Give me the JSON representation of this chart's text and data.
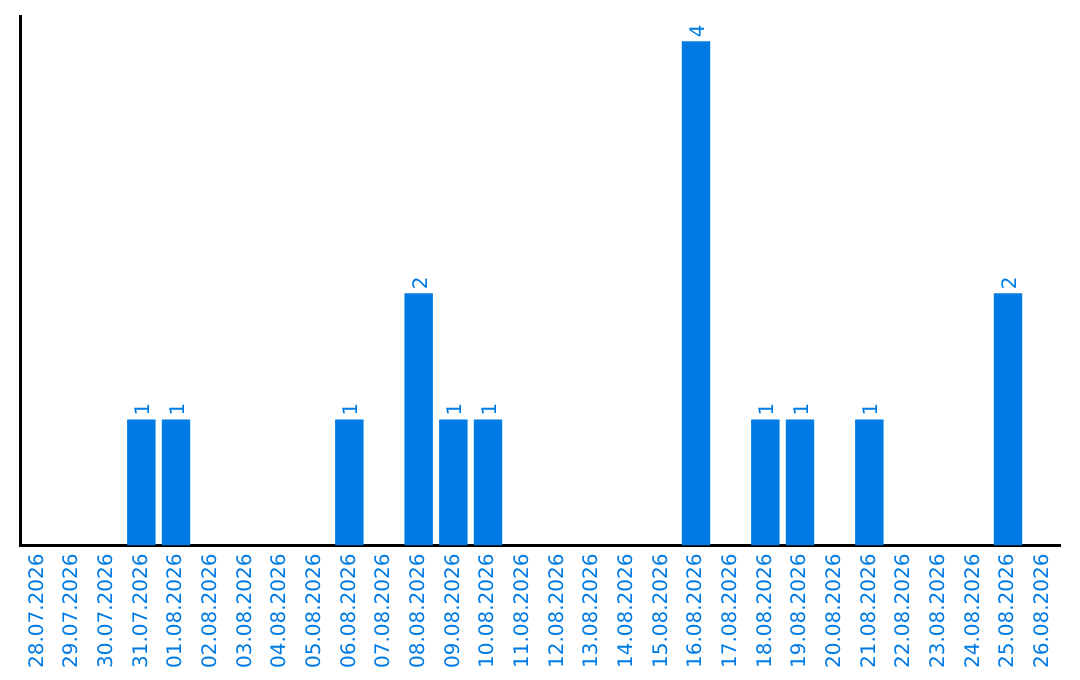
{
  "chart_data": {
    "type": "bar",
    "categories": [
      "28.07.2026",
      "29.07.2026",
      "30.07.2026",
      "31.07.2026",
      "01.08.2026",
      "02.08.2026",
      "03.08.2026",
      "04.08.2026",
      "05.08.2026",
      "06.08.2026",
      "07.08.2026",
      "08.08.2026",
      "09.08.2026",
      "10.08.2026",
      "11.08.2026",
      "12.08.2026",
      "13.08.2026",
      "14.08.2026",
      "15.08.2026",
      "16.08.2026",
      "17.08.2026",
      "18.08.2026",
      "19.08.2026",
      "20.08.2026",
      "21.08.2026",
      "22.08.2026",
      "23.08.2026",
      "24.08.2026",
      "25.08.2026",
      "26.08.2026"
    ],
    "values": [
      0,
      0,
      0,
      1,
      1,
      0,
      0,
      0,
      0,
      1,
      0,
      2,
      1,
      1,
      0,
      0,
      0,
      0,
      0,
      4,
      0,
      1,
      1,
      0,
      1,
      0,
      0,
      0,
      2,
      0
    ],
    "value_labels": [
      null,
      null,
      null,
      "1",
      "1",
      null,
      null,
      null,
      null,
      "1",
      null,
      "2",
      "1",
      "1",
      null,
      null,
      null,
      null,
      null,
      "4",
      null,
      "1",
      "1",
      null,
      "1",
      null,
      null,
      null,
      "2",
      null
    ],
    "color": "#007be3",
    "ylim": [
      0,
      4.2
    ],
    "tick_labels": "x",
    "grid": false,
    "legend": false
  }
}
